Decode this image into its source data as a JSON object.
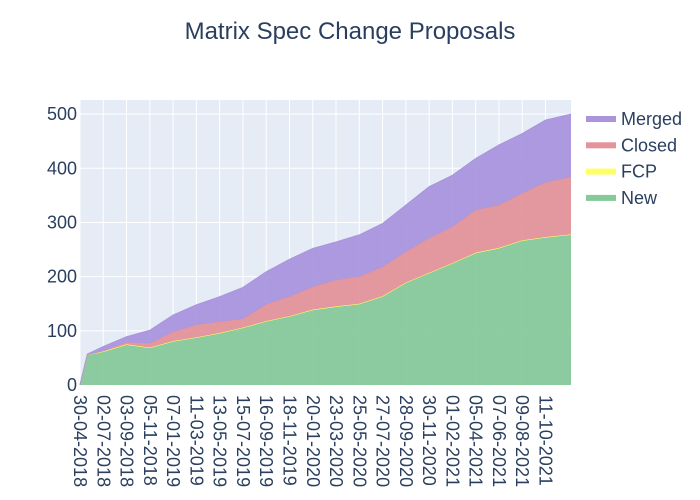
{
  "chart_data": {
    "type": "area",
    "stacked": true,
    "title": "Matrix Spec Change Proposals",
    "xlabel": "",
    "ylabel": "",
    "grid": true,
    "legend_placement": "right",
    "ylim": [
      0,
      520
    ],
    "xlim": [
      "2018-04-30",
      "2021-12-19"
    ],
    "yticks": [
      0,
      100,
      200,
      300,
      400,
      500
    ],
    "xtick_labels": [
      "30-04-2018",
      "02-07-2018",
      "03-09-2018",
      "05-11-2018",
      "07-01-2019",
      "11-03-2019",
      "13-05-2019",
      "15-07-2019",
      "16-09-2019",
      "18-11-2019",
      "20-01-2020",
      "23-03-2020",
      "25-05-2020",
      "27-07-2020",
      "28-09-2020",
      "30-11-2020",
      "01-02-2021",
      "05-04-2021",
      "07-06-2021",
      "09-08-2021",
      "11-10-2021"
    ],
    "x": [
      "2018-04-30",
      "2018-05-20",
      "2018-07-02",
      "2018-09-03",
      "2018-11-05",
      "2019-01-07",
      "2019-03-11",
      "2019-05-13",
      "2019-07-15",
      "2019-09-16",
      "2019-11-18",
      "2020-01-20",
      "2020-03-23",
      "2020-05-25",
      "2020-07-27",
      "2020-09-28",
      "2020-11-30",
      "2021-02-01",
      "2021-04-05",
      "2021-06-07",
      "2021-08-09",
      "2021-10-11",
      "2021-12-19"
    ],
    "series": [
      {
        "name": "New",
        "color": "#86c99a",
        "values": [
          0,
          55,
          61,
          74,
          68,
          80,
          87,
          95,
          105,
          117,
          126,
          138,
          144,
          149,
          163,
          188,
          206,
          224,
          243,
          252,
          266,
          272,
          277
        ]
      },
      {
        "name": "FCP",
        "color": "#ffff66",
        "values": [
          0,
          1,
          1,
          1,
          1,
          1,
          1,
          1,
          1,
          1,
          1,
          1,
          1,
          1,
          1,
          1,
          1,
          1,
          1,
          1,
          1,
          1,
          1
        ]
      },
      {
        "name": "Closed",
        "color": "#e3939b",
        "values": [
          0,
          0,
          1,
          4,
          8,
          17,
          23,
          21,
          16,
          31,
          36,
          42,
          49,
          50,
          54,
          57,
          64,
          67,
          79,
          79,
          87,
          101,
          106
        ]
      },
      {
        "name": "Merged",
        "color": "#aa95dd",
        "values": [
          0,
          1,
          8,
          10,
          24,
          31,
          37,
          46,
          58,
          60,
          69,
          71,
          70,
          77,
          80,
          86,
          95,
          95,
          95,
          111,
          110,
          115,
          116
        ]
      }
    ],
    "legend_order": [
      "Merged",
      "Closed",
      "FCP",
      "New"
    ]
  }
}
